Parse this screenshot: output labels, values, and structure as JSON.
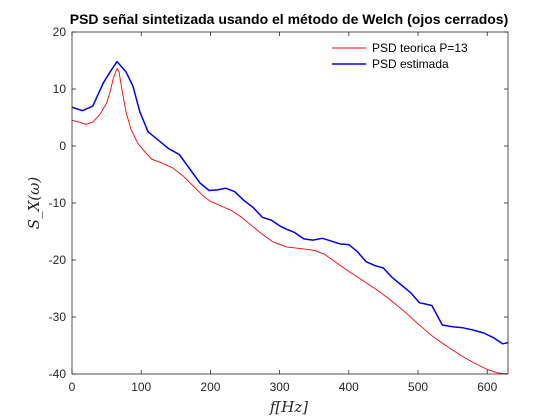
{
  "chart_data": {
    "type": "line",
    "title": "PSD señal sintetizada usando el método de Welch (ojos cerrados)",
    "xlabel": "f[Hz]",
    "ylabel": "S_X(ω)",
    "xlim": [
      0,
      630
    ],
    "ylim": [
      -40,
      20
    ],
    "xticks": [
      0,
      100,
      200,
      300,
      400,
      500,
      600
    ],
    "yticks": [
      -40,
      -30,
      -20,
      -10,
      0,
      10,
      20
    ],
    "grid": false,
    "legend_position": "top-right",
    "series": [
      {
        "name": "PSD teorica P=13",
        "color": "#ff0000",
        "x": [
          0,
          10,
          20,
          30,
          40,
          50,
          55,
          60,
          65,
          68,
          72,
          78,
          85,
          95,
          105,
          115,
          130,
          145,
          160,
          175,
          190,
          200,
          215,
          230,
          245,
          260,
          275,
          290,
          310,
          330,
          350,
          365,
          380,
          400,
          420,
          440,
          460,
          480,
          500,
          520,
          540,
          560,
          580,
          600,
          615,
          630
        ],
        "y": [
          4.5,
          4.2,
          3.8,
          4.2,
          5.5,
          7.5,
          9.5,
          12.0,
          13.6,
          13.0,
          10.0,
          6.0,
          3.0,
          0.5,
          -1.0,
          -2.3,
          -3.0,
          -3.8,
          -5.2,
          -7.0,
          -8.8,
          -9.7,
          -10.5,
          -11.3,
          -12.5,
          -14.0,
          -15.5,
          -16.8,
          -17.7,
          -18.0,
          -18.3,
          -19.0,
          -20.3,
          -22.0,
          -23.6,
          -25.2,
          -27.0,
          -29.0,
          -31.2,
          -33.3,
          -35.0,
          -36.6,
          -38.0,
          -39.2,
          -39.8,
          -40.0
        ]
      },
      {
        "name": "PSD estimada",
        "color": "#0000ff",
        "x": [
          0,
          15,
          30,
          45,
          55,
          65,
          78,
          88,
          98,
          110,
          125,
          140,
          155,
          170,
          185,
          198,
          210,
          222,
          235,
          248,
          262,
          275,
          288,
          300,
          310,
          322,
          335,
          348,
          362,
          375,
          388,
          400,
          412,
          425,
          438,
          450,
          462,
          475,
          490,
          502,
          510,
          520,
          535,
          550,
          565,
          580,
          595,
          610,
          622,
          630
        ],
        "y": [
          6.8,
          6.2,
          7.0,
          11.0,
          13.0,
          14.8,
          13.0,
          10.5,
          6.0,
          2.5,
          1.0,
          -0.5,
          -1.5,
          -4.0,
          -6.5,
          -7.8,
          -7.7,
          -7.4,
          -8.0,
          -9.5,
          -10.8,
          -12.5,
          -13.0,
          -14.0,
          -14.6,
          -15.2,
          -16.3,
          -16.5,
          -16.2,
          -16.7,
          -17.2,
          -17.3,
          -18.5,
          -20.3,
          -21.0,
          -21.4,
          -23.0,
          -24.3,
          -25.8,
          -27.5,
          -27.7,
          -28.0,
          -31.4,
          -31.7,
          -31.9,
          -32.3,
          -32.8,
          -33.7,
          -34.7,
          -34.5
        ]
      }
    ]
  }
}
